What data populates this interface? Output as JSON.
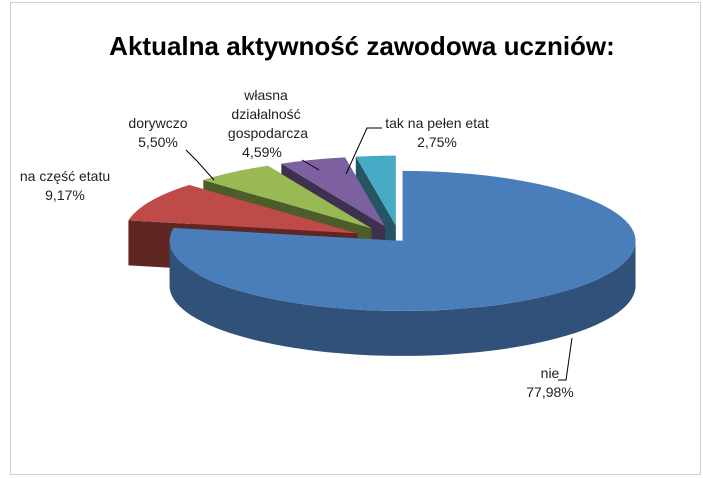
{
  "chart_data": {
    "type": "pie",
    "title": "Aktualna aktywność zawodowa uczniów:",
    "categories": [
      "nie",
      "na część etatu",
      "dorywczo",
      "własna działalność gospodarcza",
      "tak na pełen etat"
    ],
    "values": [
      77.98,
      9.17,
      5.5,
      4.59,
      2.75
    ],
    "value_labels": [
      "77,98%",
      "9,17%",
      "5,50%",
      "4,59%",
      "2,75%"
    ],
    "colors": [
      "#4a7ebb",
      "#be4b48",
      "#98b954",
      "#7d60a0",
      "#46aac5"
    ]
  }
}
